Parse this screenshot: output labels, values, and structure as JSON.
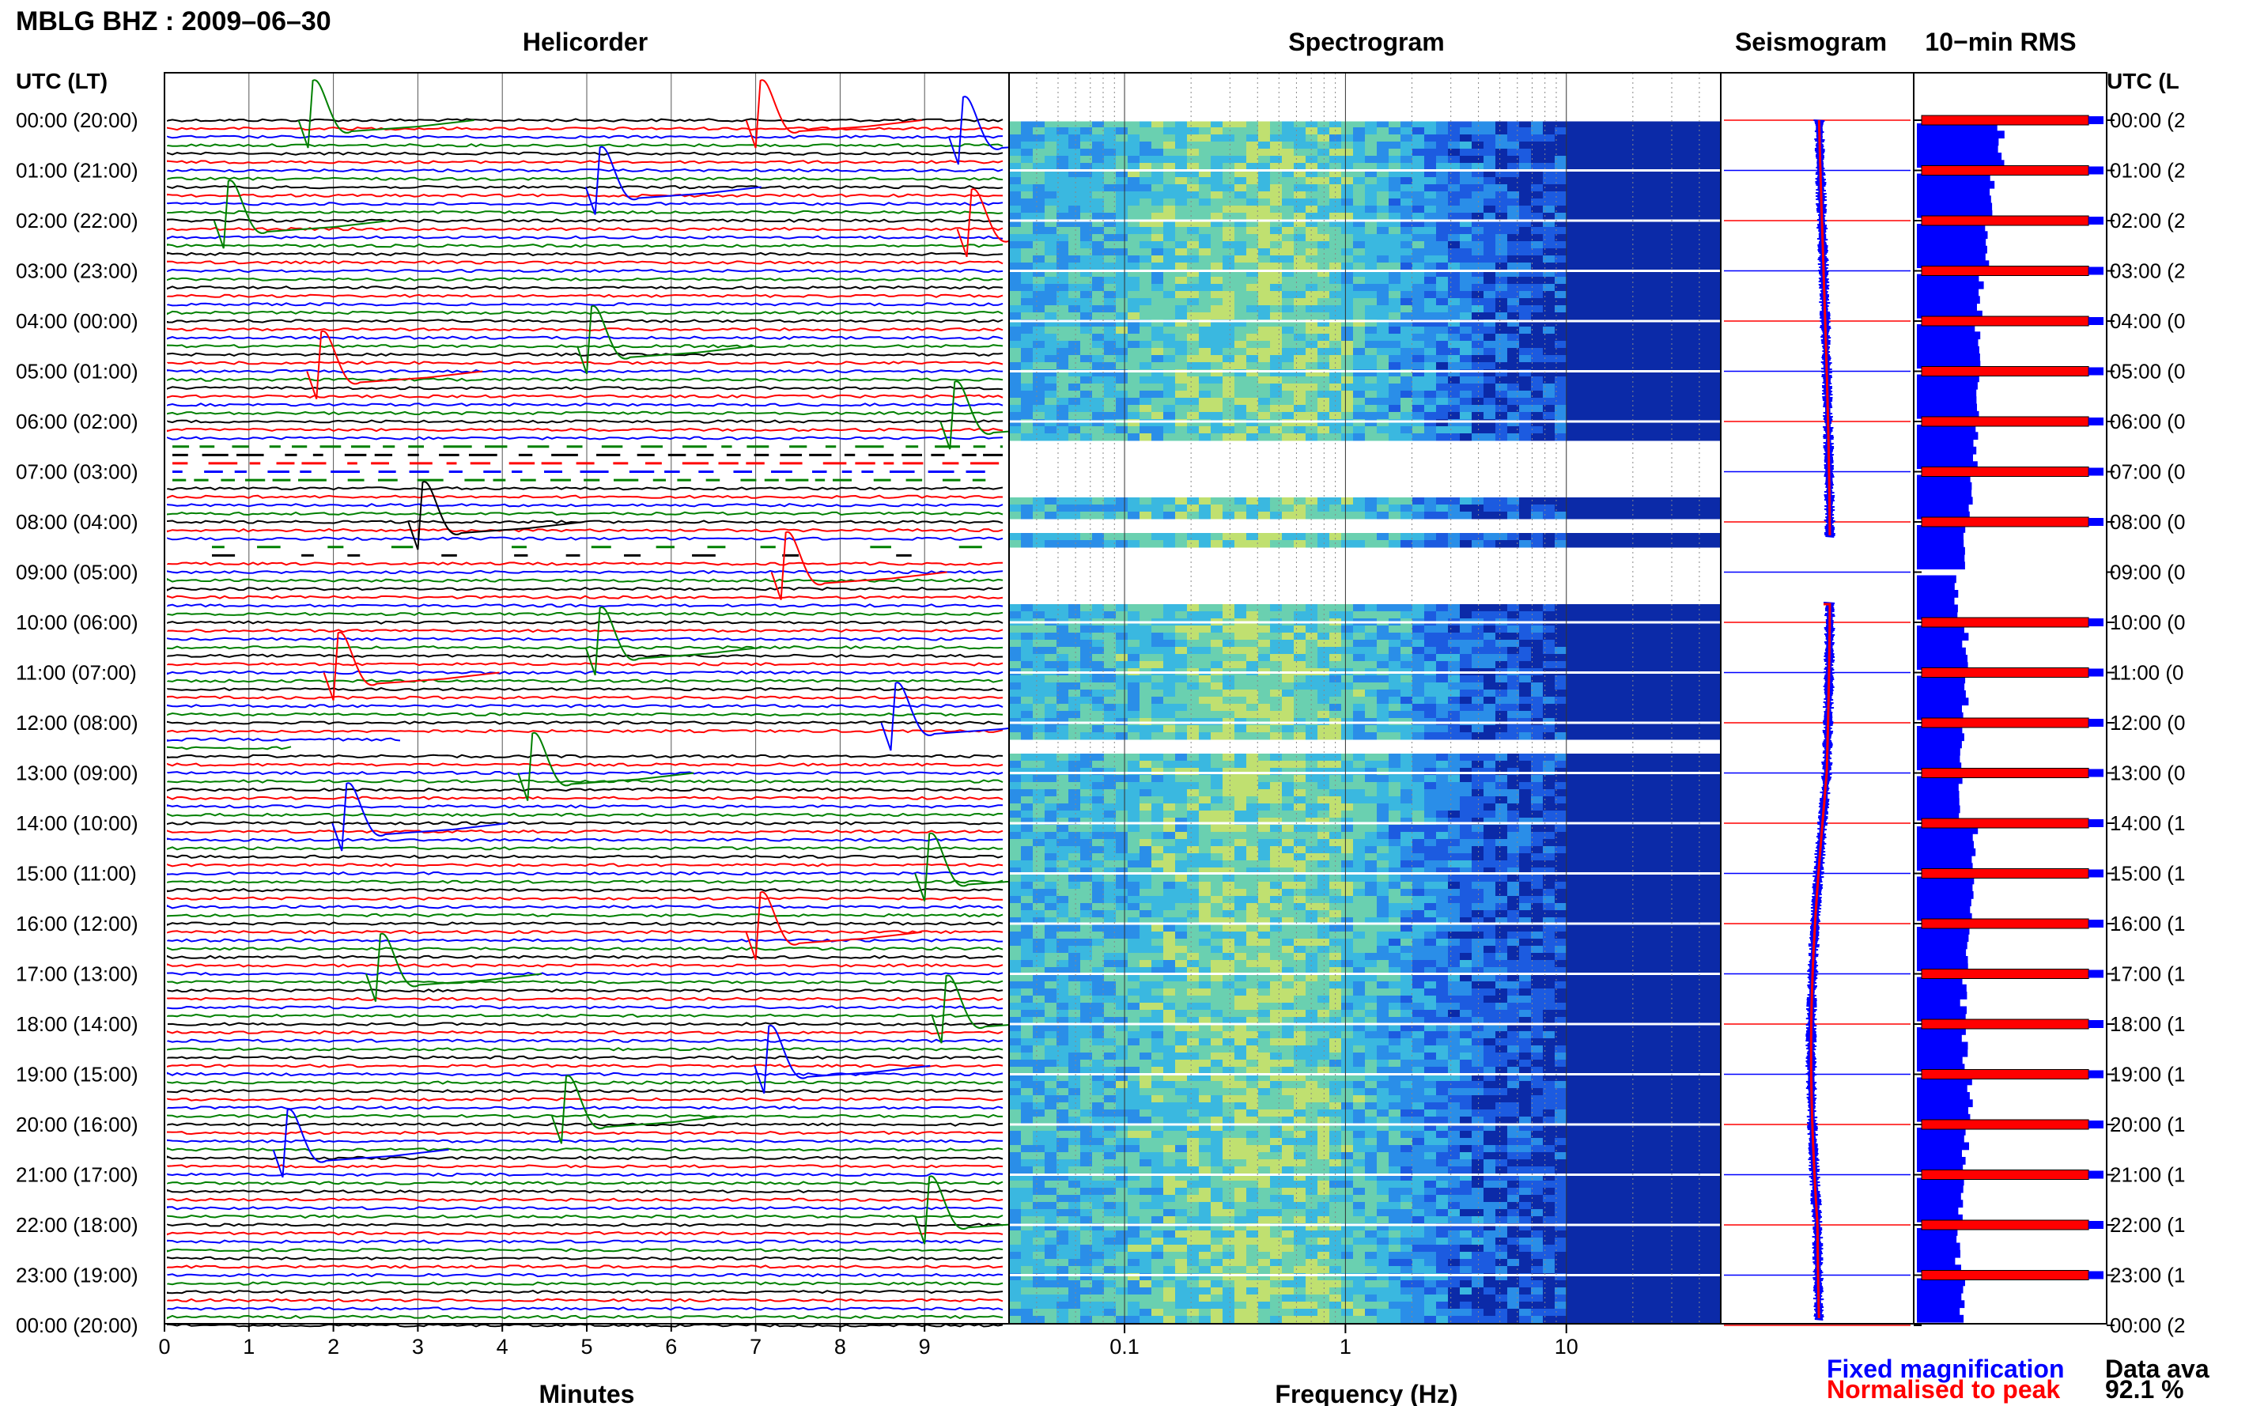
{
  "figure": {
    "title": "MBLG BHZ : 2009–06–30",
    "utc_header_left": "UTC (LT)",
    "utc_header_right": "UTC (L"
  },
  "panels": {
    "helicorder": {
      "title": "Helicorder",
      "xlabel": "Minutes"
    },
    "spectrogram": {
      "title": "Spectrogram",
      "xlabel": "Frequency (Hz)"
    },
    "seismogram": {
      "title": "Seismogram"
    },
    "rms": {
      "title": "10−min RMS"
    }
  },
  "legend": {
    "fixed": "Fixed magnification",
    "normalised": "Normalised to peak",
    "fixed_color": "#0000ff",
    "normalised_color": "#ff0000"
  },
  "availability": {
    "label": "Data ava",
    "value": "92.1 %"
  },
  "chart_data": [
    {
      "type": "line",
      "name": "helicorder",
      "xlabel": "Minutes",
      "xlim": [
        0,
        10
      ],
      "xticks": [
        "0",
        "1",
        "2",
        "3",
        "4",
        "5",
        "6",
        "7",
        "8",
        "9"
      ],
      "rows_per_hour": 6,
      "row_labels": [
        "00:00 (20:00)",
        "01:00 (21:00)",
        "02:00 (22:00)",
        "03:00 (23:00)",
        "04:00 (00:00)",
        "05:00 (01:00)",
        "06:00 (02:00)",
        "07:00 (03:00)",
        "08:00 (04:00)",
        "09:00 (05:00)",
        "10:00 (06:00)",
        "11:00 (07:00)",
        "12:00 (08:00)",
        "13:00 (09:00)",
        "14:00 (10:00)",
        "15:00 (11:00)",
        "16:00 (12:00)",
        "17:00 (13:00)",
        "18:00 (14:00)",
        "19:00 (15:00)",
        "20:00 (16:00)",
        "21:00 (17:00)",
        "22:00 (18:00)",
        "23:00 (19:00)",
        "00:00 (20:00)"
      ],
      "right_labels": [
        "00:00 (2",
        "01:00 (2",
        "02:00 (2",
        "03:00 (2",
        "04:00 (0",
        "05:00 (0",
        "06:00 (0",
        "07:00 (0",
        "08:00 (0",
        "09:00 (0",
        "10:00 (0",
        "11:00 (0",
        "12:00 (0",
        "13:00 (0",
        "14:00 (1",
        "15:00 (1",
        "16:00 (1",
        "17:00 (1",
        "18:00 (1",
        "19:00 (1",
        "20:00 (1",
        "21:00 (1",
        "22:00 (1",
        "23:00 (1",
        "00:00 (2"
      ],
      "trace_colors": [
        "#000000",
        "#ff0000",
        "#0000ff",
        "#008000"
      ],
      "gaps": [
        {
          "hour": 6.5,
          "to": 7.17,
          "style": "dashed"
        },
        {
          "hour": 8.5,
          "to": 8.83,
          "style": "sparse"
        },
        {
          "hour": 12.17,
          "to": 12.5,
          "style": "partial"
        }
      ],
      "pulses": [
        {
          "hour": 0.0,
          "minute": 1.7,
          "color": "#008000"
        },
        {
          "hour": 0.0,
          "minute": 7.0,
          "color": "#ff0000"
        },
        {
          "hour": 0.33,
          "minute": 9.4,
          "color": "#0000ff"
        },
        {
          "hour": 1.33,
          "minute": 5.1,
          "color": "#0000ff"
        },
        {
          "hour": 2.0,
          "minute": 0.7,
          "color": "#008000"
        },
        {
          "hour": 2.17,
          "minute": 9.5,
          "color": "#ff0000"
        },
        {
          "hour": 4.5,
          "minute": 5.0,
          "color": "#008000"
        },
        {
          "hour": 5.0,
          "minute": 1.8,
          "color": "#ff0000"
        },
        {
          "hour": 6.0,
          "minute": 9.3,
          "color": "#008000"
        },
        {
          "hour": 8.0,
          "minute": 3.0,
          "color": "#000000"
        },
        {
          "hour": 9.0,
          "minute": 7.3,
          "color": "#ff0000"
        },
        {
          "hour": 10.5,
          "minute": 5.1,
          "color": "#008000"
        },
        {
          "hour": 11.0,
          "minute": 2.0,
          "color": "#ff0000"
        },
        {
          "hour": 12.0,
          "minute": 8.6,
          "color": "#0000ff"
        },
        {
          "hour": 13.0,
          "minute": 4.3,
          "color": "#008000"
        },
        {
          "hour": 14.0,
          "minute": 2.1,
          "color": "#0000ff"
        },
        {
          "hour": 15.0,
          "minute": 9.0,
          "color": "#008000"
        },
        {
          "hour": 16.17,
          "minute": 7.0,
          "color": "#ff0000"
        },
        {
          "hour": 17.0,
          "minute": 2.5,
          "color": "#008000"
        },
        {
          "hour": 17.83,
          "minute": 9.2,
          "color": "#008000"
        },
        {
          "hour": 18.83,
          "minute": 7.1,
          "color": "#0000ff"
        },
        {
          "hour": 19.83,
          "minute": 4.7,
          "color": "#008000"
        },
        {
          "hour": 20.5,
          "minute": 1.4,
          "color": "#0000ff"
        },
        {
          "hour": 21.83,
          "minute": 9.0,
          "color": "#008000"
        }
      ]
    },
    {
      "type": "heatmap",
      "name": "spectrogram",
      "xlabel": "Frequency (Hz)",
      "xscale": "log",
      "xlim": [
        0.03,
        50
      ],
      "xticks": [
        0.1,
        1,
        10
      ],
      "xtick_labels": [
        "0.1",
        "1",
        "10"
      ],
      "ylim_hours": [
        0,
        24
      ],
      "gap_hours": [
        [
          6.3,
          7.5
        ],
        [
          7.8,
          8.2
        ],
        [
          8.4,
          9.6
        ],
        [
          12.3,
          12.6
        ]
      ],
      "colormap": [
        "#0b2aa8",
        "#1c5be0",
        "#2a8ee8",
        "#3ab8e0",
        "#6ad0b0",
        "#c0e070"
      ]
    },
    {
      "type": "line",
      "name": "seismogram",
      "ylim_hours": [
        0,
        24
      ]
    },
    {
      "type": "bar",
      "name": "10-min RMS",
      "orientation": "horizontal",
      "ylim_hours": [
        0,
        24
      ],
      "series": [
        {
          "name": "Fixed magnification",
          "color": "#0000ff",
          "values": [
            0.45,
            0.4,
            0.37,
            0.34,
            0.33,
            0.32,
            0.32,
            0.28,
            0.26,
            0.22,
            0.26,
            0.26,
            0.25,
            0.24,
            0.31,
            0.3,
            0.27,
            0.25,
            0.26,
            0.28,
            0.26,
            0.24,
            0.22,
            0.24
          ]
        },
        {
          "name": "Normalised to peak",
          "color": "#ff0000",
          "values": [
            0.92,
            0.92,
            0.92,
            0.92,
            0.92,
            0.92,
            0.92,
            0.92,
            0.92,
            0.0,
            0.92,
            0.92,
            0.92,
            0.92,
            0.92,
            0.92,
            0.92,
            0.92,
            0.92,
            0.92,
            0.92,
            0.92,
            0.92,
            0.92
          ]
        }
      ]
    }
  ]
}
